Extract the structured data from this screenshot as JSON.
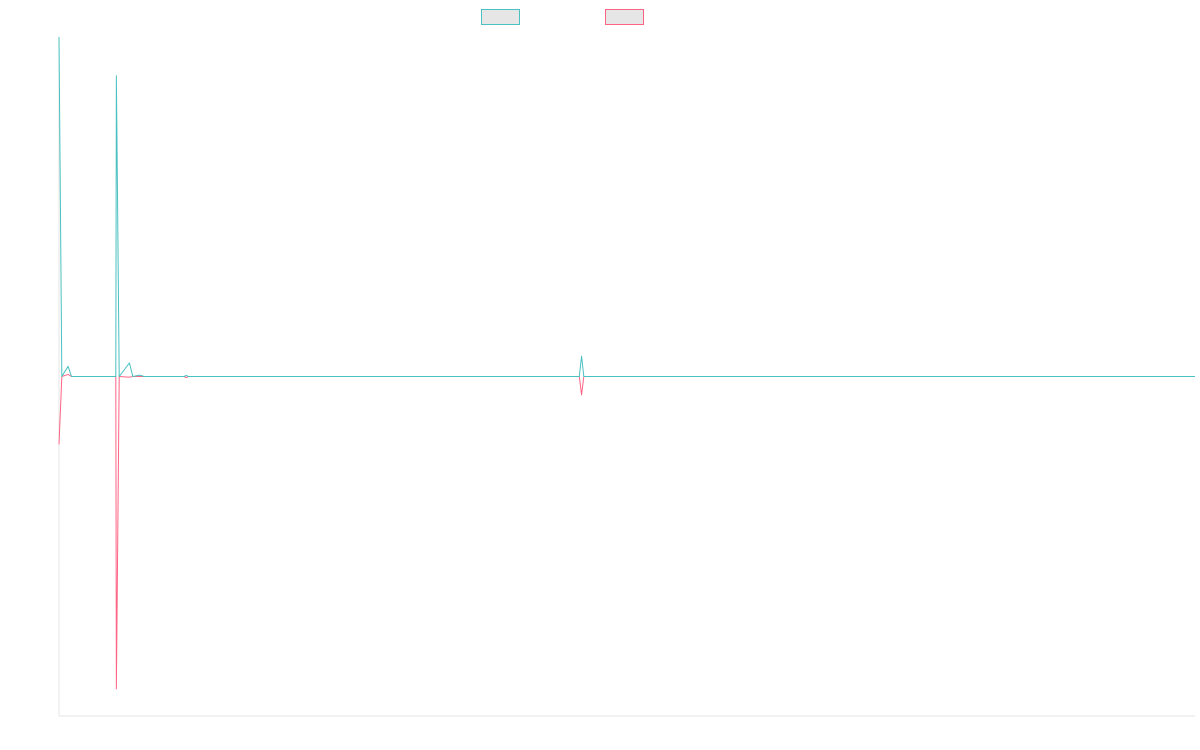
{
  "chart_data": {
    "type": "line",
    "title": "",
    "xlabel": "",
    "ylabel": "",
    "grid": false,
    "legend_position": "top-center",
    "xlim": [
      0,
      100
    ],
    "ylim": [
      -50,
      50
    ],
    "series": [
      {
        "color": "#4bc0c0",
        "points": [
          [
            0,
            50
          ],
          [
            0.25,
            0
          ],
          [
            0.8,
            1.5
          ],
          [
            1.1,
            0
          ],
          [
            5,
            0
          ],
          [
            5.05,
            44.3
          ],
          [
            5.3,
            0
          ],
          [
            6.2,
            2
          ],
          [
            6.5,
            0
          ],
          [
            7.1,
            0.2
          ],
          [
            7.5,
            0
          ],
          [
            11,
            0
          ],
          [
            11.2,
            0.15
          ],
          [
            11.4,
            0
          ],
          [
            45.8,
            0
          ],
          [
            46,
            3
          ],
          [
            46.2,
            0
          ],
          [
            100,
            0
          ]
        ]
      },
      {
        "color": "#ff6384",
        "points": [
          [
            0,
            -10
          ],
          [
            0.25,
            0
          ],
          [
            0.8,
            0.3
          ],
          [
            1.1,
            0
          ],
          [
            5,
            0
          ],
          [
            5.05,
            -46
          ],
          [
            5.3,
            0
          ],
          [
            6.2,
            -0.1
          ],
          [
            6.5,
            0
          ],
          [
            11,
            0
          ],
          [
            11.2,
            -0.15
          ],
          [
            11.4,
            0
          ],
          [
            45.8,
            0
          ],
          [
            46,
            -2.7
          ],
          [
            46.2,
            0
          ],
          [
            100,
            0
          ]
        ]
      }
    ]
  }
}
